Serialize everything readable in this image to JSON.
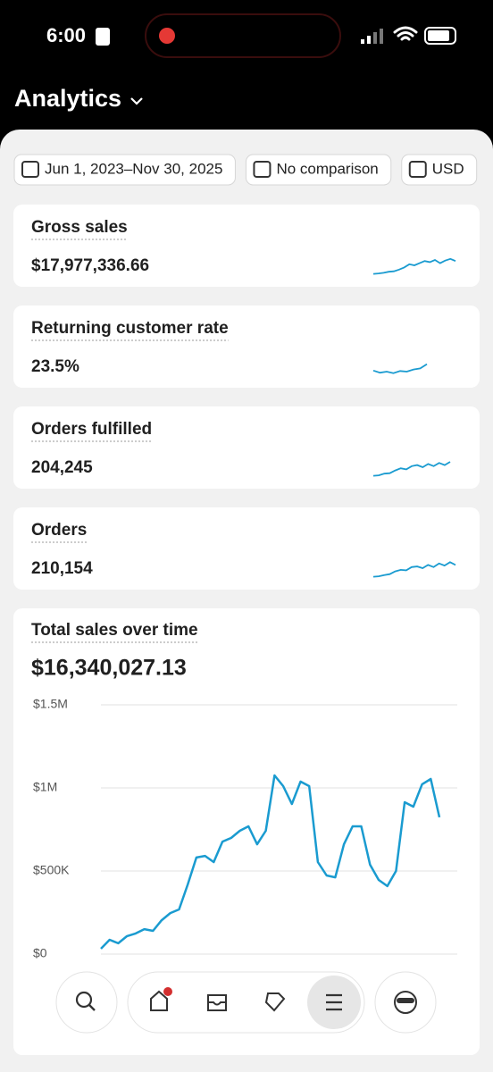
{
  "status_bar": {
    "time": "6:00"
  },
  "header": {
    "title": "Analytics"
  },
  "filters": [
    "Jun 1, 2023–Nov 30, 2025",
    "No comparison",
    "USD"
  ],
  "metrics": [
    {
      "label": "Gross sales",
      "value": "$17,977,336.66",
      "trend": [
        10,
        12,
        15,
        20,
        22,
        30,
        40,
        55,
        50,
        60,
        70,
        65,
        75,
        60,
        72,
        80,
        70
      ]
    },
    {
      "label": "Returning customer rate",
      "value": "23.5%",
      "trend": [
        30,
        20,
        25,
        18,
        28,
        25,
        35,
        40,
        60
      ]
    },
    {
      "label": "Orders fulfilled",
      "value": "204,245",
      "trend": [
        10,
        12,
        20,
        22,
        35,
        45,
        40,
        55,
        60,
        50,
        65,
        55,
        70,
        60,
        75
      ]
    },
    {
      "label": "Orders",
      "value": "210,154",
      "trend": [
        10,
        12,
        18,
        22,
        35,
        42,
        40,
        55,
        58,
        50,
        65,
        55,
        72,
        62,
        78,
        65
      ]
    }
  ],
  "chart_data": {
    "type": "line",
    "title": "Total sales over time",
    "subtitle": "$16,340,027.13",
    "values": [
      32000,
      86000,
      65000,
      108000,
      124000,
      150000,
      140000,
      204000,
      247000,
      269000,
      419000,
      581000,
      591000,
      554000,
      677000,
      699000,
      742000,
      769000,
      661000,
      742000,
      1075000,
      1011000,
      903000,
      1038000,
      1011000,
      554000,
      473000,
      462000,
      661000,
      769000,
      769000,
      538000,
      446000,
      409000,
      500000,
      914000,
      887000,
      1022000,
      1054000,
      823000
    ],
    "color": "#1a9bd0",
    "ylim": [
      0,
      1500000
    ],
    "yticks": [
      {
        "value": 0,
        "label": "$0"
      },
      {
        "value": 500000,
        "label": "$500K"
      },
      {
        "value": 1000000,
        "label": "$1M"
      },
      {
        "value": 1500000,
        "label": "$1.5M"
      }
    ],
    "grid": true
  }
}
